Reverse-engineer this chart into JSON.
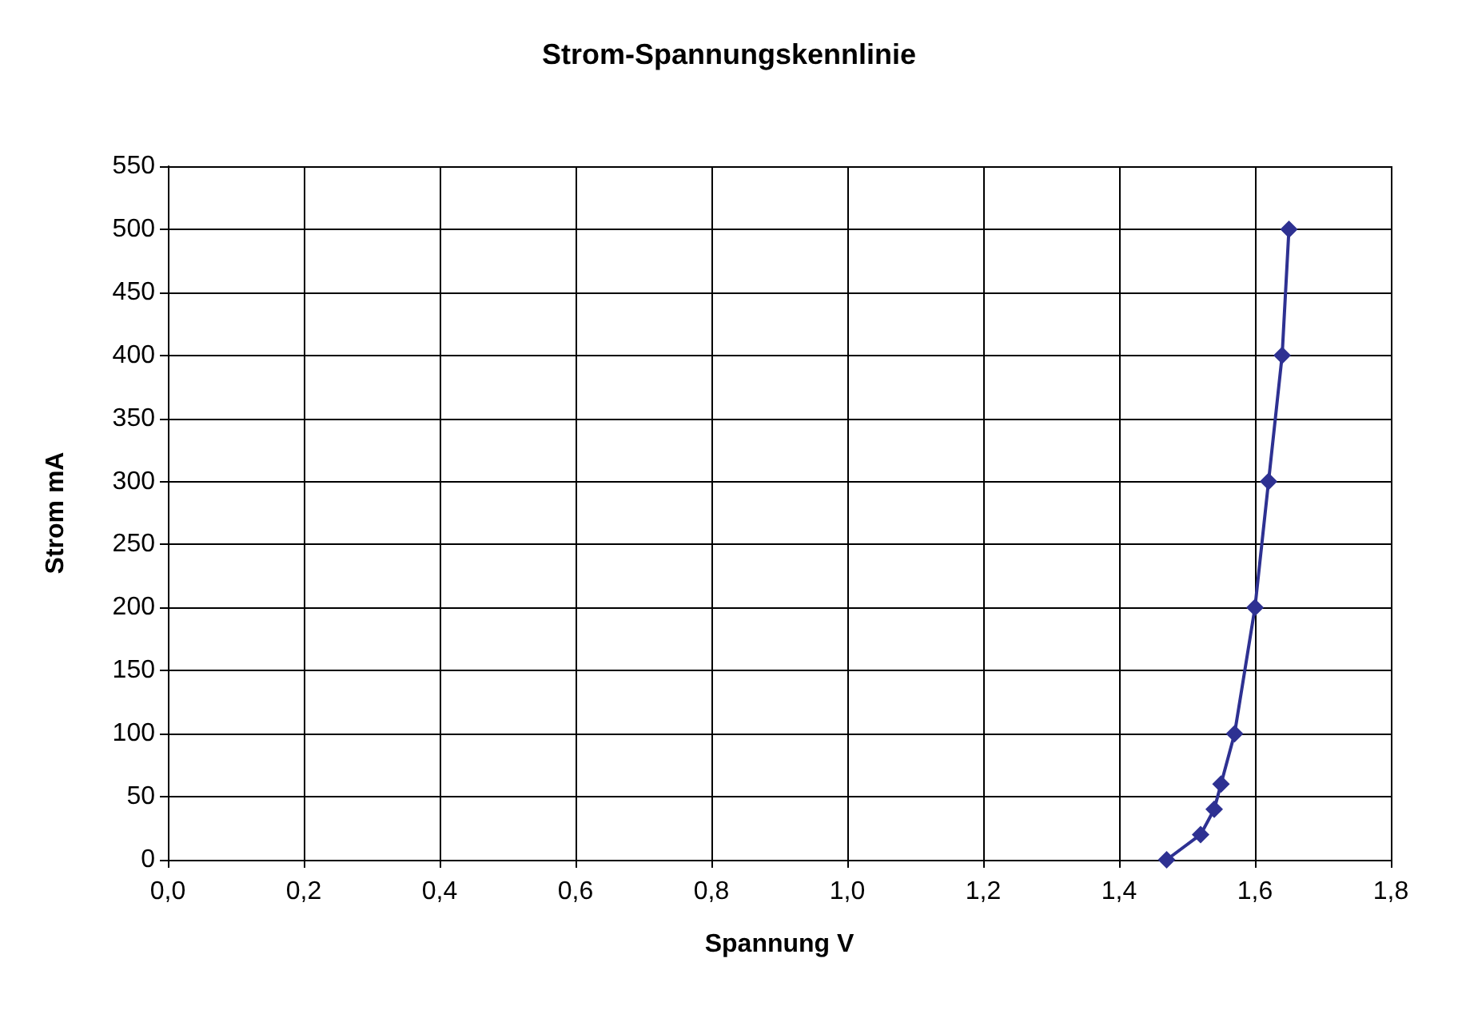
{
  "chart_data": {
    "type": "line",
    "title": "Strom-Spannungskennlinie",
    "xlabel": "Spannung V",
    "ylabel": "Strom mA",
    "x": [
      1.47,
      1.52,
      1.54,
      1.55,
      1.57,
      1.6,
      1.62,
      1.64,
      1.65
    ],
    "series": [
      {
        "color": "#2e3192",
        "values": [
          0,
          20,
          40,
          60,
          100,
          200,
          300,
          400,
          500
        ]
      }
    ],
    "xlim": [
      0,
      1.8
    ],
    "xticks": [
      {
        "value": 0,
        "label": "0,0"
      },
      {
        "value": 0.2,
        "label": "0,2"
      },
      {
        "value": 0.4,
        "label": "0,4"
      },
      {
        "value": 0.6,
        "label": "0,6"
      },
      {
        "value": 0.8,
        "label": "0,8"
      },
      {
        "value": 1,
        "label": "1,0"
      },
      {
        "value": 1.2,
        "label": "1,2"
      },
      {
        "value": 1.4,
        "label": "1,4"
      },
      {
        "value": 1.6,
        "label": "1,6"
      },
      {
        "value": 1.8,
        "label": "1,8"
      }
    ],
    "ylim": [
      0,
      550
    ],
    "yticks": [
      0,
      50,
      100,
      150,
      200,
      250,
      300,
      350,
      400,
      450,
      500,
      550
    ],
    "grid": true,
    "marker": "diamond",
    "line_style": "solid"
  }
}
